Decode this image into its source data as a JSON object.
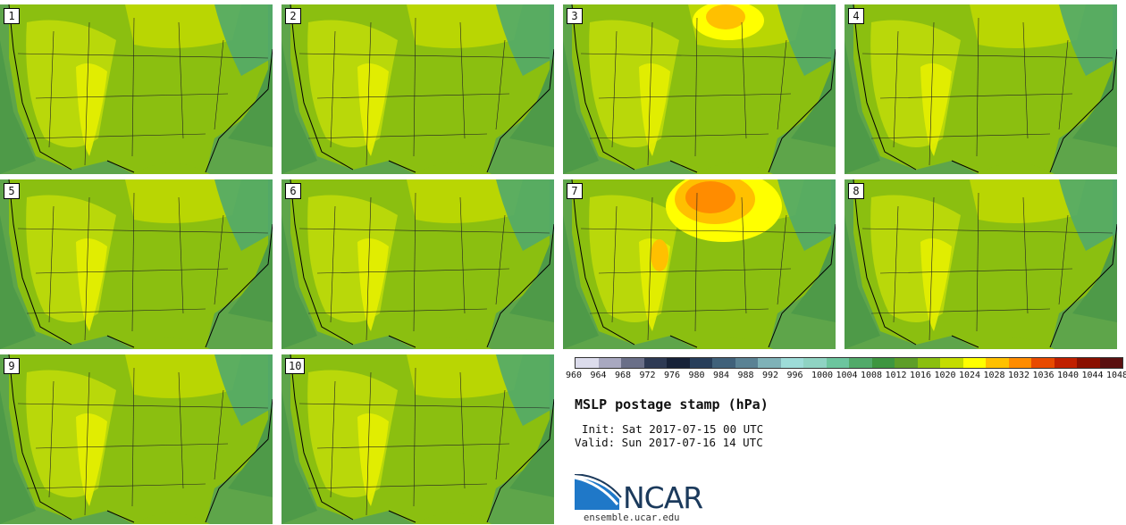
{
  "panels": [
    {
      "label": "1",
      "highs": 0
    },
    {
      "label": "2",
      "highs": 0
    },
    {
      "label": "3",
      "highs": 1
    },
    {
      "label": "4",
      "highs": 0
    },
    {
      "label": "5",
      "highs": 0
    },
    {
      "label": "6",
      "highs": 0
    },
    {
      "label": "7",
      "highs": 2
    },
    {
      "label": "8",
      "highs": 0
    },
    {
      "label": "9",
      "highs": 0
    },
    {
      "label": "10",
      "highs": 0
    }
  ],
  "colorbar": {
    "labels": [
      "960",
      "964",
      "968",
      "972",
      "976",
      "980",
      "984",
      "988",
      "992",
      "996",
      "1000",
      "1004",
      "1008",
      "1012",
      "1016",
      "1020",
      "1024",
      "1028",
      "1032",
      "1036",
      "1040",
      "1044",
      "1048"
    ],
    "colors": [
      "#dcdcec",
      "#a8a8c0",
      "#6a6f88",
      "#2e3a54",
      "#172238",
      "#273e5a",
      "#40617a",
      "#5a8294",
      "#7fb2b8",
      "#9ddcd8",
      "#8fd3c3",
      "#6cc59e",
      "#52aa6a",
      "#3e9640",
      "#5e9e28",
      "#8bbf10",
      "#c4dc00",
      "#ffff00",
      "#ffc000",
      "#ff8c00",
      "#e84a00",
      "#c02000",
      "#8a1000",
      "#5a1010"
    ]
  },
  "title": "MSLP postage stamp (hPa)",
  "init_text": "Init: Sat 2017-07-15 00 UTC",
  "valid_text": "Valid: Sun 2017-07-16 14 UTC",
  "logo_text": "NCAR",
  "site": "ensemble.ucar.edu"
}
